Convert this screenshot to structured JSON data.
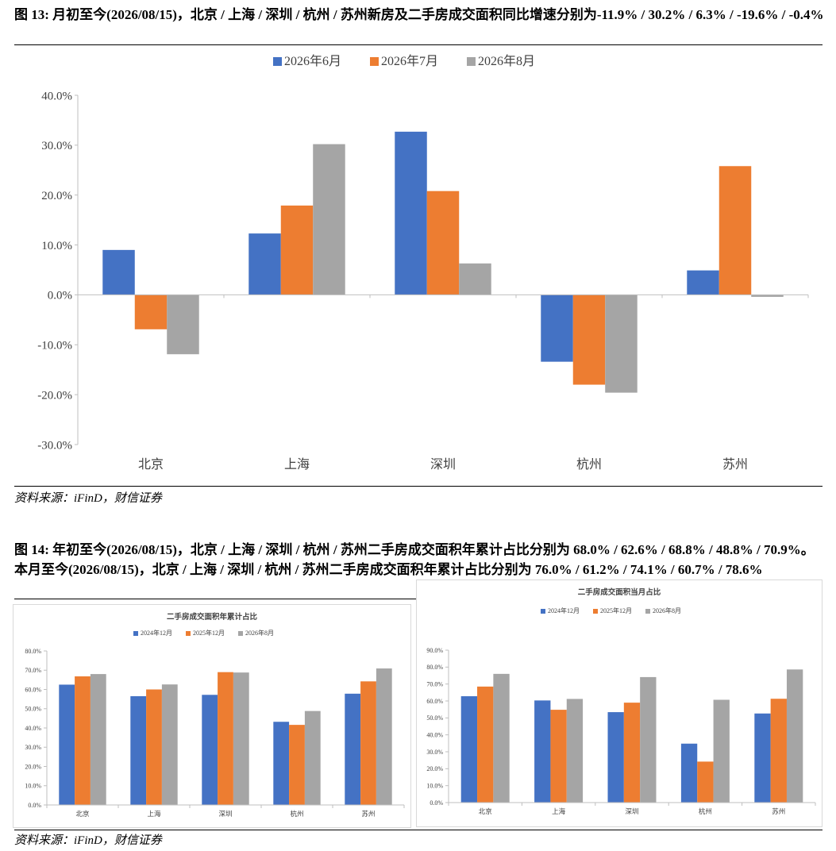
{
  "figures": {
    "fig13": {
      "title": "图 13:  月初至今(2026/08/15)，北京  /  上海  /  深圳  /  杭州  /  苏州新房及二手房成交面积同比增速分别为-11.9% / 30.2% / 6.3% / -19.6% / -0.4%",
      "source": "资料来源：iFinD，财信证券"
    },
    "fig14": {
      "title": "图 14:  年初至今(2026/08/15)，北京  /  上海  /  深圳  /  杭州  /  苏州二手房成交面积年累计占比分别为 68.0% / 62.6% / 68.8% / 48.8% / 70.9%。本月至今(2026/08/15)，北京  /  上海  /  深圳  /  杭州  /  苏州二手房成交面积年累计占比分别为 76.0% / 61.2% / 74.1% / 60.7% / 78.6%",
      "source": "资料来源：iFinD，财信证券"
    }
  },
  "colors": {
    "blue": "#4472C4",
    "orange": "#ED7D31",
    "gray": "#A5A5A5",
    "axis": "#bfbfbf",
    "tick_text": "#404040"
  },
  "chart_data": [
    {
      "id": "chart13",
      "type": "bar",
      "title": "",
      "categories": [
        "北京",
        "上海",
        "深圳",
        "杭州",
        "苏州"
      ],
      "series": [
        {
          "name": "2026年6月",
          "values": [
            9.0,
            12.3,
            32.7,
            -13.4,
            4.9
          ]
        },
        {
          "name": "2026年7月",
          "values": [
            -6.9,
            17.9,
            20.8,
            -18.0,
            25.8
          ]
        },
        {
          "name": "2026年8月",
          "values": [
            -11.9,
            30.2,
            6.3,
            -19.6,
            -0.4
          ]
        }
      ],
      "ylim": [
        -30,
        40
      ],
      "yticks": [
        -30,
        -20,
        -10,
        0,
        10,
        20,
        30,
        40
      ],
      "tick_format": "percent1",
      "legend_position": "top",
      "grid": false
    },
    {
      "id": "chart14a",
      "type": "bar",
      "title": "二手房成交面积年累计占比",
      "categories": [
        "北京",
        "上海",
        "深圳",
        "杭州",
        "苏州"
      ],
      "series": [
        {
          "name": "2024年12月",
          "values": [
            62.5,
            56.5,
            57.2,
            43.2,
            57.8
          ]
        },
        {
          "name": "2025年12月",
          "values": [
            66.8,
            60.0,
            69.0,
            41.6,
            64.2
          ]
        },
        {
          "name": "2026年8月",
          "values": [
            68.0,
            62.6,
            68.8,
            48.8,
            70.9
          ]
        }
      ],
      "ylim": [
        0,
        80
      ],
      "yticks": [
        0,
        10,
        20,
        30,
        40,
        50,
        60,
        70,
        80
      ],
      "tick_format": "percent1",
      "legend_position": "top",
      "grid": false
    },
    {
      "id": "chart14b",
      "type": "bar",
      "title": "二手房成交面积当月占比",
      "categories": [
        "北京",
        "上海",
        "深圳",
        "杭州",
        "苏州"
      ],
      "series": [
        {
          "name": "2024年12月",
          "values": [
            62.8,
            60.3,
            53.4,
            34.8,
            52.6
          ]
        },
        {
          "name": "2025年12月",
          "values": [
            68.5,
            54.8,
            59.0,
            24.2,
            61.3
          ]
        },
        {
          "name": "2026年8月",
          "values": [
            76.0,
            61.2,
            74.1,
            60.7,
            78.6
          ]
        }
      ],
      "ylim": [
        0,
        90
      ],
      "yticks": [
        0,
        10,
        20,
        30,
        40,
        50,
        60,
        70,
        80,
        90
      ],
      "tick_format": "percent1",
      "legend_position": "top",
      "grid": false
    }
  ]
}
